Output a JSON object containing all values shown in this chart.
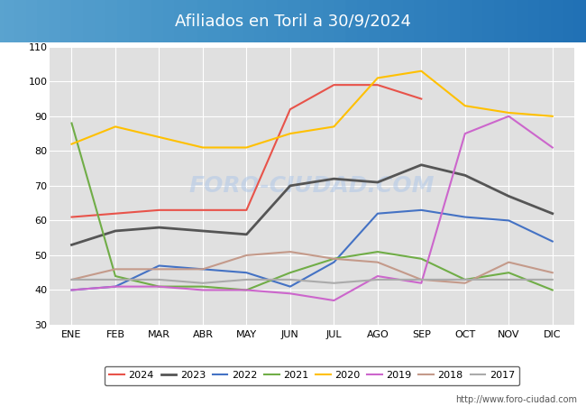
{
  "title": "Afiliados en Toril a 30/9/2024",
  "background_color": "#ffffff",
  "plot_bg_color": "#e0e0e0",
  "ylim": [
    30,
    110
  ],
  "yticks": [
    30,
    40,
    50,
    60,
    70,
    80,
    90,
    100,
    110
  ],
  "months": [
    "ENE",
    "FEB",
    "MAR",
    "ABR",
    "MAY",
    "JUN",
    "JUL",
    "AGO",
    "SEP",
    "OCT",
    "NOV",
    "DIC"
  ],
  "watermark": "FORO-CIUDAD.COM",
  "footer": "http://www.foro-ciudad.com",
  "series": [
    {
      "label": "2024",
      "color": "#e8534a",
      "linewidth": 1.5,
      "data": [
        61,
        62,
        63,
        63,
        63,
        92,
        99,
        99,
        95,
        null,
        null,
        null
      ]
    },
    {
      "label": "2023",
      "color": "#555555",
      "linewidth": 2.0,
      "data": [
        53,
        57,
        58,
        57,
        56,
        70,
        72,
        71,
        76,
        73,
        67,
        62
      ]
    },
    {
      "label": "2022",
      "color": "#4472c4",
      "linewidth": 1.5,
      "data": [
        40,
        41,
        47,
        46,
        45,
        41,
        48,
        62,
        63,
        61,
        60,
        54
      ]
    },
    {
      "label": "2021",
      "color": "#70ad47",
      "linewidth": 1.5,
      "data": [
        88,
        44,
        41,
        41,
        40,
        45,
        49,
        51,
        49,
        43,
        45,
        40
      ]
    },
    {
      "label": "2020",
      "color": "#ffc000",
      "linewidth": 1.5,
      "data": [
        82,
        87,
        84,
        81,
        81,
        85,
        87,
        101,
        103,
        93,
        91,
        90
      ]
    },
    {
      "label": "2019",
      "color": "#cc66cc",
      "linewidth": 1.5,
      "data": [
        40,
        41,
        41,
        40,
        40,
        39,
        37,
        44,
        42,
        85,
        90,
        81
      ]
    },
    {
      "label": "2018",
      "color": "#c49a8a",
      "linewidth": 1.5,
      "data": [
        43,
        46,
        46,
        46,
        50,
        51,
        49,
        48,
        43,
        42,
        48,
        45
      ]
    },
    {
      "label": "2017",
      "color": "#aaaaaa",
      "linewidth": 1.5,
      "data": [
        43,
        43,
        43,
        42,
        43,
        43,
        42,
        43,
        43,
        43,
        43,
        43
      ]
    }
  ]
}
